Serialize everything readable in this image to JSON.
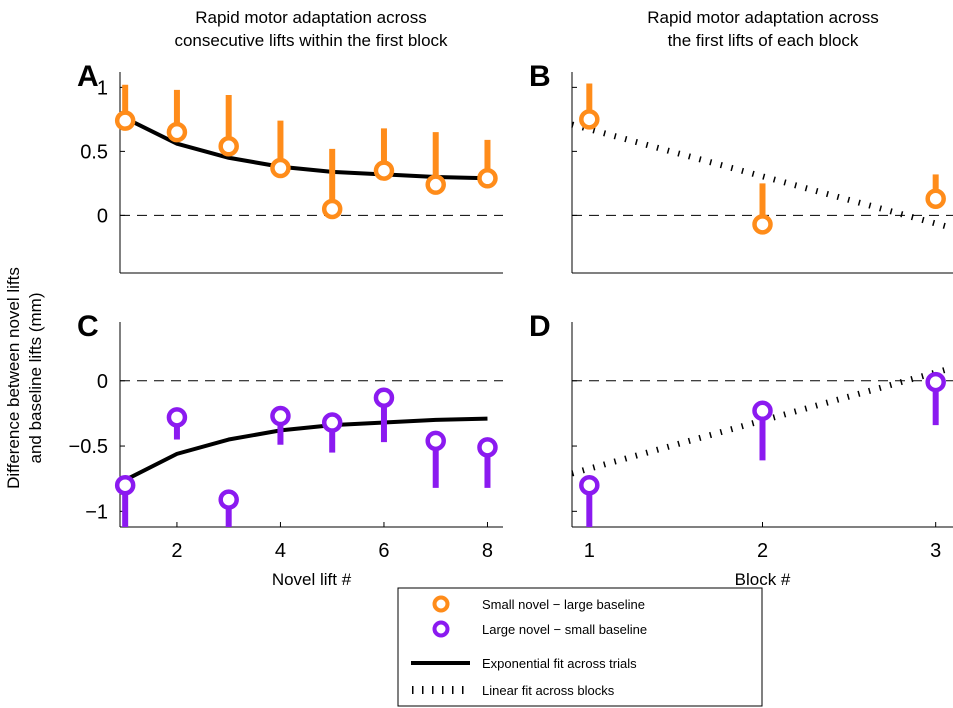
{
  "titles": {
    "left_line1": "Rapid motor adaptation across",
    "left_line2": "consecutive lifts within the first block",
    "right_line1": "Rapid motor adaptation across",
    "right_line2": "the first lifts of each block"
  },
  "ylabel": {
    "line1": "Difference between novel lifts",
    "line2": "and baseline lifts (mm)"
  },
  "colors": {
    "orange": "#FF8C1A",
    "purple": "#8B1AF0",
    "fit": "#000000"
  },
  "legend": {
    "items": [
      {
        "label": "Small novel − large baseline",
        "marker": "circle",
        "color": "#FF8C1A"
      },
      {
        "label": "Large novel − small baseline",
        "marker": "circle",
        "color": "#8B1AF0"
      },
      {
        "label": "Exponential fit across trials",
        "marker": "solid-line",
        "color": "#000000"
      },
      {
        "label": "Linear fit across blocks",
        "marker": "dotted-line",
        "color": "#000000"
      }
    ]
  },
  "chart_data": [
    {
      "panel": "A",
      "type": "scatter",
      "xlabel": "",
      "ylabel": "",
      "xlim": [
        0.9,
        8.3
      ],
      "ylim": [
        -0.45,
        1.12
      ],
      "xticks": [],
      "xtick_labels": [],
      "yticks": [
        0,
        0.5,
        1
      ],
      "ytick_labels": [
        "0",
        "0.5",
        "1"
      ],
      "zero_line": true,
      "series": [
        {
          "name": "Small novel − large baseline",
          "color": "#FF8C1A",
          "x": [
            1,
            2,
            3,
            4,
            5,
            6,
            7,
            8
          ],
          "y": [
            0.74,
            0.65,
            0.54,
            0.37,
            0.05,
            0.35,
            0.24,
            0.29
          ],
          "error_dir": "up",
          "error": [
            0.28,
            0.33,
            0.4,
            0.37,
            0.47,
            0.33,
            0.41,
            0.3
          ]
        }
      ],
      "fit": {
        "kind": "exponential",
        "style": "solid",
        "x": [
          1,
          2,
          3,
          4,
          5,
          6,
          7,
          8
        ],
        "y": [
          0.76,
          0.56,
          0.45,
          0.38,
          0.34,
          0.32,
          0.3,
          0.29
        ]
      }
    },
    {
      "panel": "B",
      "type": "scatter",
      "xlabel": "",
      "ylabel": "",
      "xlim": [
        0.9,
        3.1
      ],
      "ylim": [
        -0.45,
        1.12
      ],
      "xticks": [],
      "xtick_labels": [],
      "yticks": [
        0,
        0.5,
        1
      ],
      "ytick_labels": [],
      "zero_line": true,
      "series": [
        {
          "name": "Small novel − large baseline",
          "color": "#FF8C1A",
          "x": [
            1,
            2,
            3
          ],
          "y": [
            0.75,
            -0.07,
            0.13
          ],
          "error_dir": "up",
          "error": [
            0.28,
            0.32,
            0.19
          ]
        }
      ],
      "fit": {
        "kind": "linear",
        "style": "dotted",
        "x": [
          0.9,
          3.1
        ],
        "y": [
          0.71,
          -0.1
        ]
      }
    },
    {
      "panel": "C",
      "type": "scatter",
      "xlabel": "Novel lift #",
      "ylabel": "",
      "xlim": [
        0.9,
        8.3
      ],
      "ylim": [
        -1.12,
        0.45
      ],
      "xticks": [
        2,
        4,
        6,
        8
      ],
      "xtick_labels": [
        "2",
        "4",
        "6",
        "8"
      ],
      "yticks": [
        -1,
        -0.5,
        0
      ],
      "ytick_labels": [
        "−1",
        "−0.5",
        "0"
      ],
      "zero_line": true,
      "series": [
        {
          "name": "Large novel − small baseline",
          "color": "#8B1AF0",
          "x": [
            1,
            2,
            3,
            4,
            5,
            6,
            7,
            8
          ],
          "y": [
            -0.8,
            -0.28,
            -0.91,
            -0.27,
            -0.32,
            -0.13,
            -0.46,
            -0.51
          ],
          "error_dir": "down",
          "error": [
            0.32,
            0.17,
            0.25,
            0.22,
            0.23,
            0.34,
            0.36,
            0.31
          ]
        }
      ],
      "fit": {
        "kind": "exponential",
        "style": "solid",
        "x": [
          1,
          2,
          3,
          4,
          5,
          6,
          7,
          8
        ],
        "y": [
          -0.76,
          -0.56,
          -0.45,
          -0.38,
          -0.34,
          -0.32,
          -0.3,
          -0.29
        ]
      }
    },
    {
      "panel": "D",
      "type": "scatter",
      "xlabel": "Block #",
      "ylabel": "",
      "xlim": [
        0.9,
        3.1
      ],
      "ylim": [
        -1.12,
        0.45
      ],
      "xticks": [
        1,
        2,
        3
      ],
      "xtick_labels": [
        "1",
        "2",
        "3"
      ],
      "yticks": [
        -1,
        -0.5,
        0
      ],
      "ytick_labels": [],
      "zero_line": true,
      "series": [
        {
          "name": "Large novel − small baseline",
          "color": "#8B1AF0",
          "x": [
            1,
            2,
            3
          ],
          "y": [
            -0.8,
            -0.23,
            -0.01
          ],
          "error_dir": "down",
          "error": [
            0.32,
            0.38,
            0.33
          ]
        }
      ],
      "fit": {
        "kind": "linear",
        "style": "dotted",
        "x": [
          0.9,
          3.1
        ],
        "y": [
          -0.71,
          0.1
        ]
      }
    }
  ]
}
